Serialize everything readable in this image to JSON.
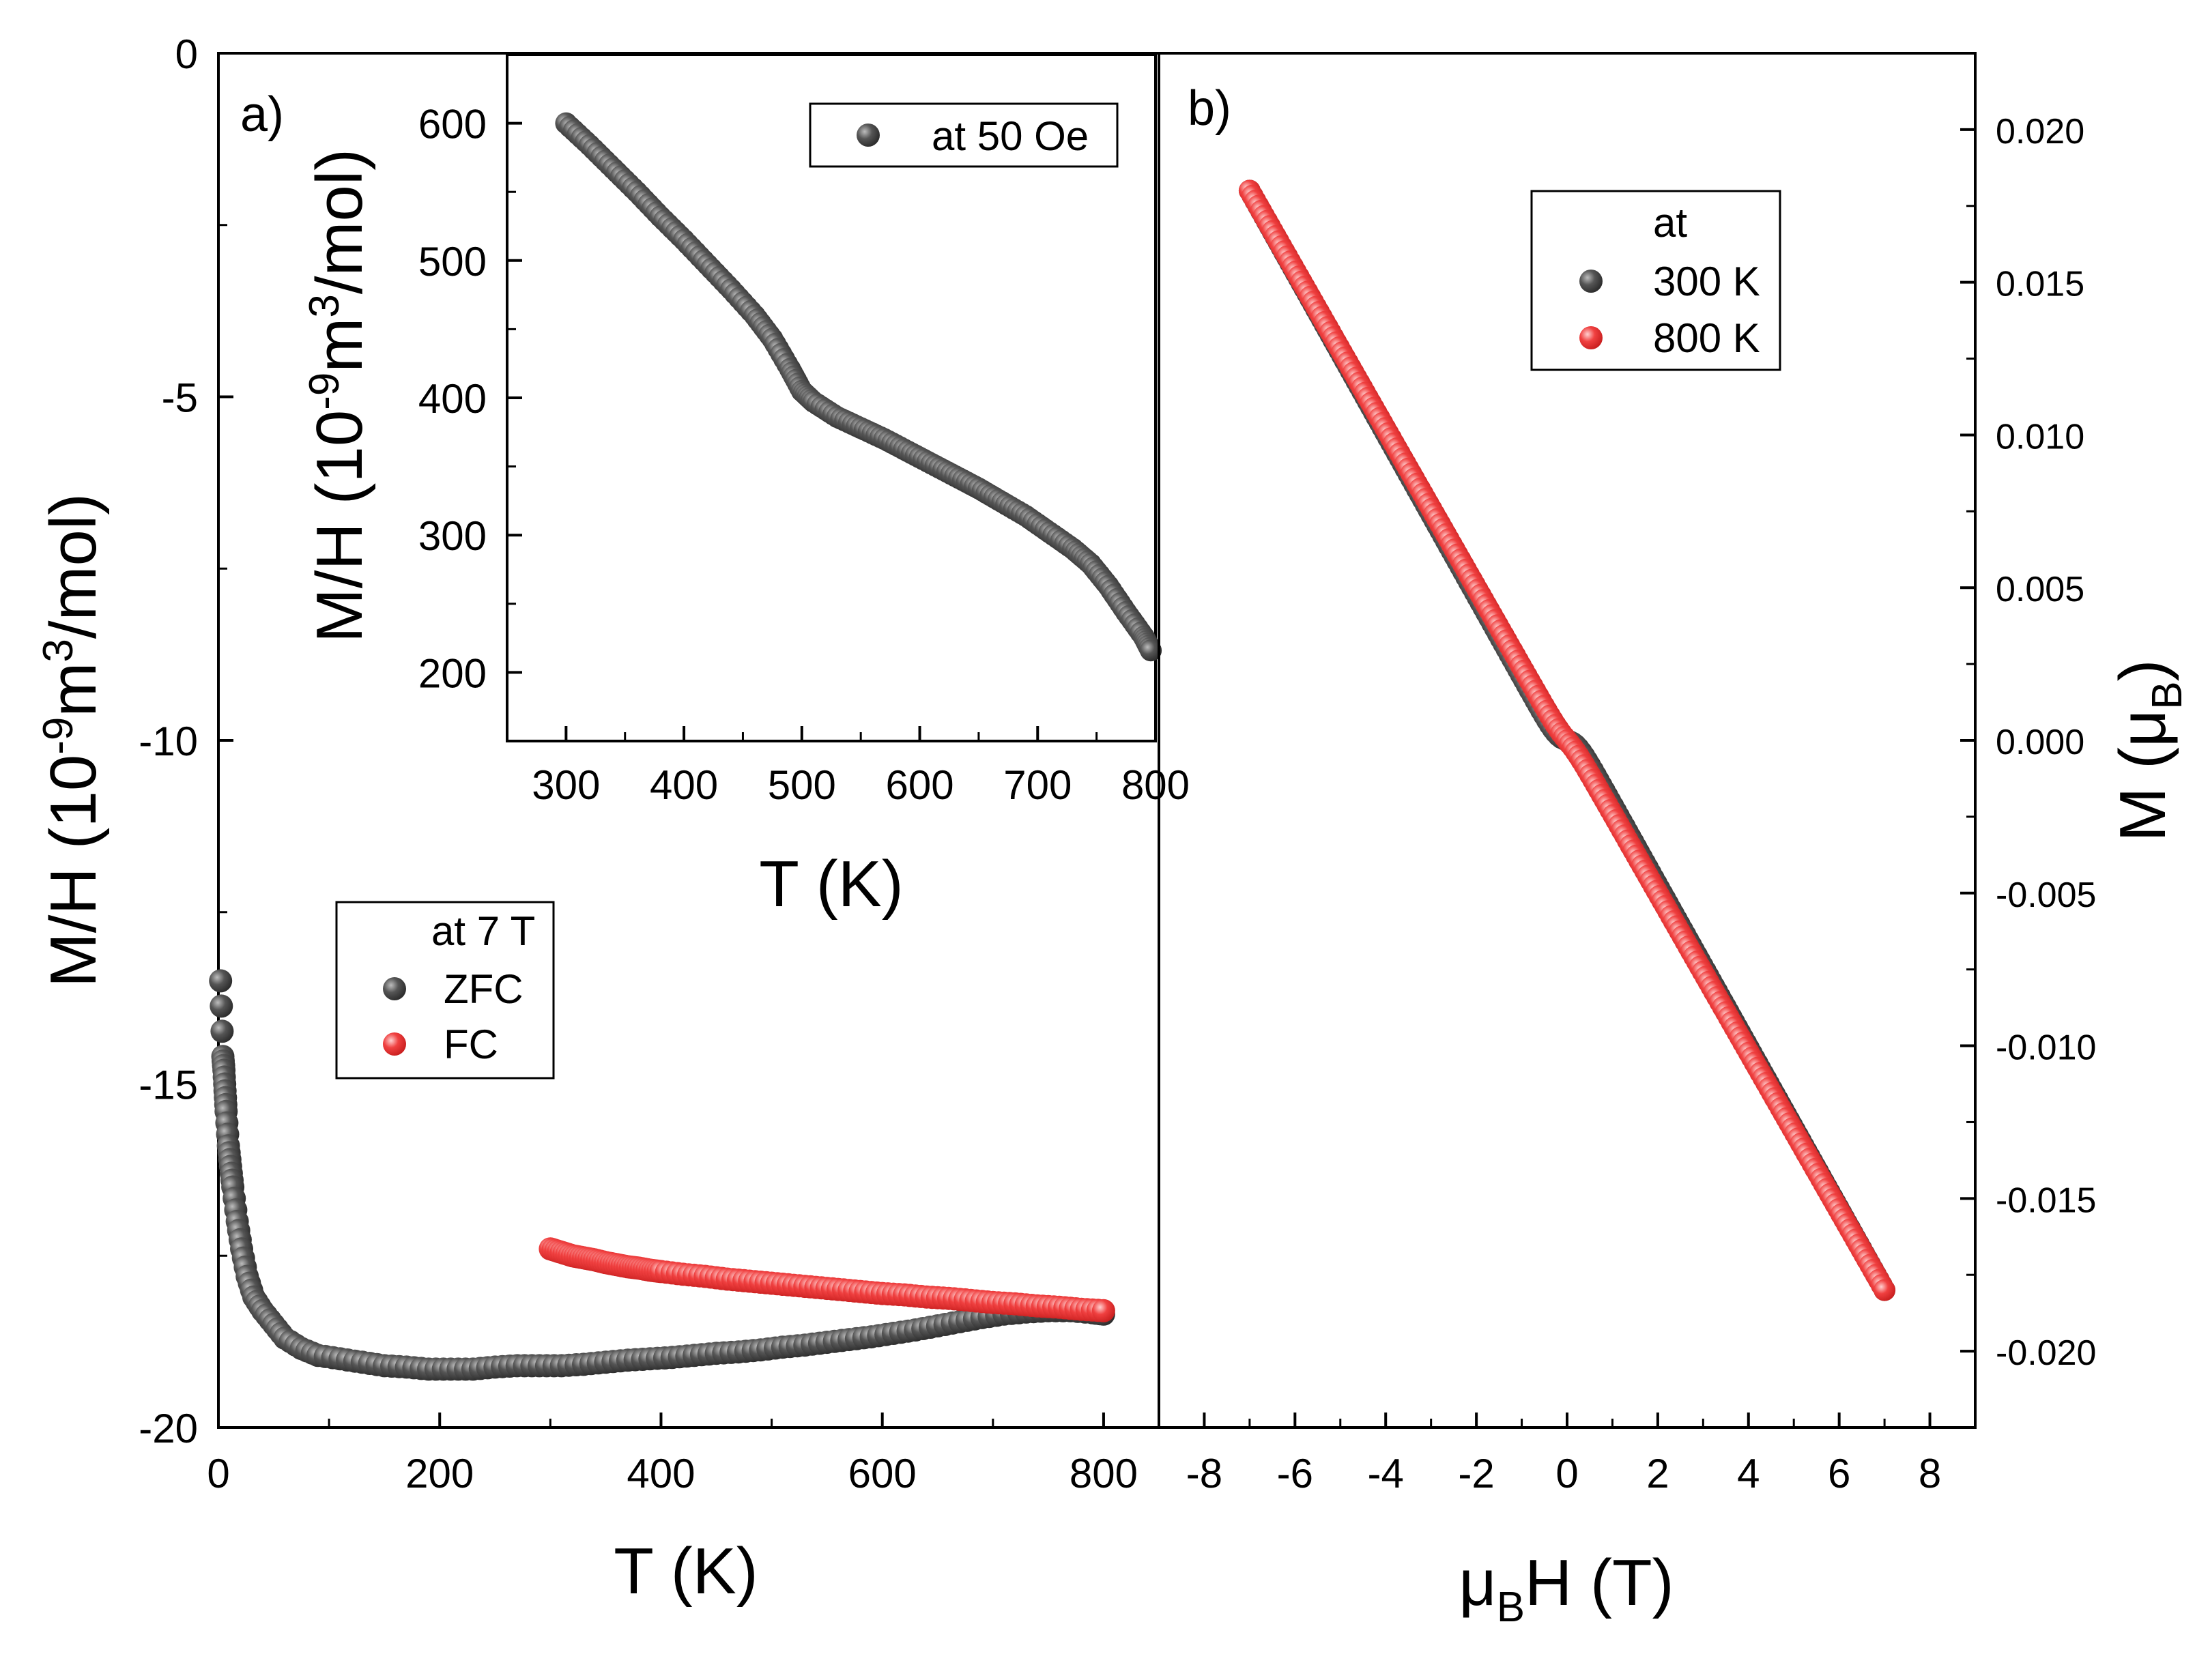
{
  "chart_data": [
    {
      "id": "panel-a",
      "type": "scatter",
      "panel_label": "a)",
      "xlabel": "T (K)",
      "ylabel": {
        "main": "M/H (10",
        "sup1": "-9",
        "mid": "m",
        "sup2": "3",
        "tail": "/mol)"
      },
      "xlim": [
        0,
        850
      ],
      "ylim": [
        -20,
        0
      ],
      "xticks": [
        0,
        200,
        400,
        600,
        800
      ],
      "xtick_labels": [
        "0",
        "200",
        "400",
        "600",
        "800"
      ],
      "yticks": [
        0,
        -5,
        -10,
        -15,
        -20
      ],
      "ytick_labels": [
        "0",
        "-5",
        "-10",
        "-15",
        "-20"
      ],
      "legend": {
        "title": "at 7 T",
        "position": "middle-left"
      },
      "series": [
        {
          "name": "ZFC",
          "color": "#4a4a4a",
          "points": [
            [
              2,
              -13.5
            ],
            [
              4,
              -14.6
            ],
            [
              5,
              -14.8
            ],
            [
              6,
              -15.1
            ],
            [
              7,
              -15.4
            ],
            [
              9,
              -15.9
            ],
            [
              11,
              -16.2
            ],
            [
              13,
              -16.5
            ],
            [
              17,
              -17.0
            ],
            [
              21,
              -17.4
            ],
            [
              26,
              -17.8
            ],
            [
              32,
              -18.1
            ],
            [
              40,
              -18.3
            ],
            [
              50,
              -18.5
            ],
            [
              60,
              -18.7
            ],
            [
              75,
              -18.85
            ],
            [
              90,
              -18.95
            ],
            [
              110,
              -19.0
            ],
            [
              130,
              -19.05
            ],
            [
              150,
              -19.1
            ],
            [
              170,
              -19.12
            ],
            [
              190,
              -19.15
            ],
            [
              210,
              -19.15
            ],
            [
              230,
              -19.15
            ],
            [
              250,
              -19.12
            ],
            [
              270,
              -19.1
            ],
            [
              290,
              -19.1
            ],
            [
              310,
              -19.1
            ],
            [
              330,
              -19.08
            ],
            [
              350,
              -19.05
            ],
            [
              370,
              -19.02
            ],
            [
              390,
              -19.0
            ],
            [
              410,
              -18.98
            ],
            [
              430,
              -18.95
            ],
            [
              450,
              -18.92
            ],
            [
              470,
              -18.9
            ],
            [
              490,
              -18.87
            ],
            [
              510,
              -18.83
            ],
            [
              530,
              -18.8
            ],
            [
              550,
              -18.76
            ],
            [
              570,
              -18.72
            ],
            [
              590,
              -18.68
            ],
            [
              610,
              -18.63
            ],
            [
              630,
              -18.58
            ],
            [
              650,
              -18.52
            ],
            [
              670,
              -18.46
            ],
            [
              690,
              -18.4
            ],
            [
              710,
              -18.35
            ],
            [
              730,
              -18.32
            ],
            [
              750,
              -18.3
            ],
            [
              770,
              -18.3
            ],
            [
              790,
              -18.33
            ],
            [
              800,
              -18.35
            ]
          ]
        },
        {
          "name": "FC",
          "color": "#f03a3a",
          "points": [
            [
              300,
              -17.4
            ],
            [
              310,
              -17.45
            ],
            [
              320,
              -17.5
            ],
            [
              330,
              -17.53
            ],
            [
              340,
              -17.56
            ],
            [
              350,
              -17.6
            ],
            [
              360,
              -17.63
            ],
            [
              370,
              -17.66
            ],
            [
              380,
              -17.68
            ],
            [
              390,
              -17.71
            ],
            [
              400,
              -17.73
            ],
            [
              420,
              -17.77
            ],
            [
              440,
              -17.8
            ],
            [
              460,
              -17.84
            ],
            [
              480,
              -17.87
            ],
            [
              500,
              -17.9
            ],
            [
              520,
              -17.93
            ],
            [
              540,
              -17.96
            ],
            [
              560,
              -17.99
            ],
            [
              580,
              -18.02
            ],
            [
              600,
              -18.05
            ],
            [
              620,
              -18.07
            ],
            [
              640,
              -18.1
            ],
            [
              660,
              -18.12
            ],
            [
              680,
              -18.15
            ],
            [
              700,
              -18.18
            ],
            [
              720,
              -18.2
            ],
            [
              740,
              -18.23
            ],
            [
              760,
              -18.25
            ],
            [
              780,
              -18.28
            ],
            [
              800,
              -18.3
            ]
          ]
        }
      ]
    },
    {
      "id": "panel-a-inset",
      "type": "scatter",
      "xlabel": "T (K)",
      "ylabel": {
        "main": "M/H (10",
        "sup1": "-9",
        "mid": "m",
        "sup2": "3",
        "tail": "/mol)"
      },
      "xlim": [
        250,
        800
      ],
      "ylim": [
        150,
        650
      ],
      "xticks": [
        300,
        400,
        500,
        600,
        700,
        800
      ],
      "xtick_labels": [
        "300",
        "400",
        "500",
        "600",
        "700",
        "800"
      ],
      "yticks": [
        600,
        500,
        400,
        300,
        200
      ],
      "ytick_labels": [
        "600",
        "500",
        "400",
        "300",
        "200"
      ],
      "legend": {
        "title": "",
        "position": "top-right"
      },
      "series": [
        {
          "name": "at 50 Oe",
          "color": "#4a4a4a",
          "points": [
            [
              300,
              600
            ],
            [
              320,
              584
            ],
            [
              340,
              567
            ],
            [
              360,
              550
            ],
            [
              380,
              532
            ],
            [
              400,
              515
            ],
            [
              420,
              497
            ],
            [
              440,
              479
            ],
            [
              460,
              460
            ],
            [
              475,
              443
            ],
            [
              490,
              421
            ],
            [
              500,
              405
            ],
            [
              510,
              397
            ],
            [
              530,
              386
            ],
            [
              550,
              378
            ],
            [
              570,
              370
            ],
            [
              590,
              361
            ],
            [
              610,
              352
            ],
            [
              630,
              343
            ],
            [
              650,
              334
            ],
            [
              670,
              324
            ],
            [
              690,
              314
            ],
            [
              710,
              302
            ],
            [
              730,
              290
            ],
            [
              745,
              279
            ],
            [
              760,
              263
            ],
            [
              775,
              244
            ],
            [
              790,
              226
            ],
            [
              796,
              216
            ]
          ]
        }
      ]
    },
    {
      "id": "panel-b",
      "type": "scatter",
      "panel_label": "b)",
      "xlabel": {
        "mu": "μ",
        "sub": "B",
        "tail": "H (T)"
      },
      "ylabel": {
        "main": "M (μ",
        "sub": "B",
        "tail": ")"
      },
      "xlim": [
        -9,
        9
      ],
      "ylim": [
        -0.0225,
        0.0225
      ],
      "xticks": [
        -8,
        -6,
        -4,
        -2,
        0,
        2,
        4,
        6,
        8
      ],
      "xtick_labels": [
        "-8",
        "-6",
        "-4",
        "-2",
        "0",
        "2",
        "4",
        "6",
        "8"
      ],
      "yticks": [
        0.02,
        0.015,
        0.01,
        0.005,
        0.0,
        -0.005,
        -0.01,
        -0.015,
        -0.02
      ],
      "ytick_labels": [
        "0.020",
        "0.015",
        "0.010",
        "0.005",
        "0.000",
        "-0.005",
        "-0.010",
        "-0.015",
        "-0.020"
      ],
      "legend": {
        "title": "at",
        "position": "top-right"
      },
      "series": [
        {
          "name": "300 K",
          "color": "#4a4a4a",
          "x_range": [
            -7,
            7
          ],
          "m_sat": 0.00055,
          "slope": -0.00265
        },
        {
          "name": "800 K",
          "color": "#f03a3a",
          "x_range": [
            -7,
            7
          ],
          "m_sat": 0.0002,
          "slope": -0.0026
        }
      ]
    }
  ]
}
